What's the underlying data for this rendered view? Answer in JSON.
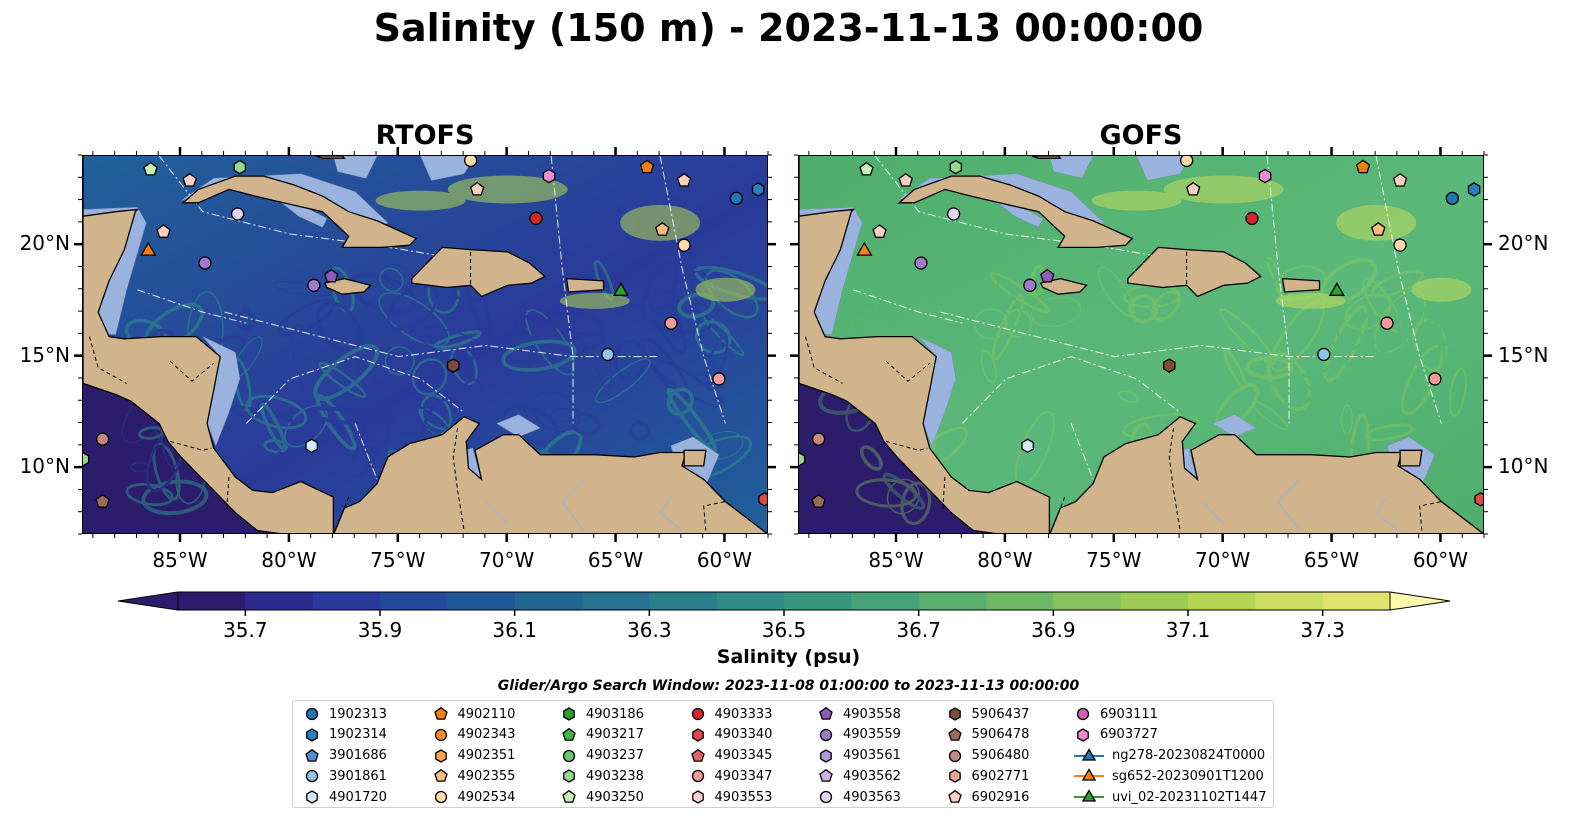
{
  "title": "Salinity (150 m) - 2023-11-13 00:00:00",
  "panels": [
    {
      "name": "RTOFS",
      "palette": {
        "deep": "#2a3a9a",
        "mid": "#21619a",
        "light": "#2f8f8a"
      }
    },
    {
      "name": "GOFS",
      "palette": {
        "deep": "#5bb87a",
        "mid": "#4fae6c",
        "light": "#8fcf5a"
      }
    }
  ],
  "colors": {
    "land": "#d2b48c",
    "shallow": "#9ab3de",
    "coast": "#000000",
    "ocean_outside": "#2b1d6b"
  },
  "map_extent": {
    "lon": [
      -89.5,
      -58.0
    ],
    "lat": [
      7.0,
      24.0
    ]
  },
  "lat_ticks": [
    "20°N",
    "15°N",
    "10°N"
  ],
  "lat_tick_values": [
    20,
    15,
    10
  ],
  "lon_ticks": [
    "85°W",
    "80°W",
    "75°W",
    "70°W",
    "65°W",
    "60°W"
  ],
  "lon_tick_values": [
    -85,
    -80,
    -75,
    -70,
    -65,
    -60
  ],
  "colorbar": {
    "label": "Salinity (psu)",
    "min": 35.6,
    "max": 37.4,
    "ticks": [
      "35.7",
      "35.9",
      "36.1",
      "36.3",
      "36.5",
      "36.7",
      "36.9",
      "37.1",
      "37.3"
    ],
    "tick_values": [
      35.7,
      35.9,
      36.1,
      36.3,
      36.5,
      36.7,
      36.9,
      37.1,
      37.3
    ],
    "colors": [
      "#2b1d6b",
      "#2a2a8c",
      "#2a3a9a",
      "#24499a",
      "#1f5896",
      "#216691",
      "#25728e",
      "#2a7f8b",
      "#2f8b87",
      "#37977f",
      "#46a277",
      "#5aae6e",
      "#6eb866",
      "#86c25d",
      "#9ccb56",
      "#b4d353",
      "#ccdd63",
      "#e2e36f"
    ],
    "extend_low": "#2b1d6b",
    "extend_high": "#fdf8b0"
  },
  "legend": {
    "title": "Glider/Argo Search Window: 2023-11-08 01:00:00 to 2023-11-13 00:00:00",
    "items": [
      {
        "label": "1902313",
        "marker": "circle",
        "color": "#1f77b4"
      },
      {
        "label": "1902314",
        "marker": "hexagon",
        "color": "#2a7fc1"
      },
      {
        "label": "3901686",
        "marker": "pentagon",
        "color": "#4d8fd0"
      },
      {
        "label": "3901861",
        "marker": "circle",
        "color": "#8fc3e8"
      },
      {
        "label": "4901720",
        "marker": "hexagon",
        "color": "#d2e9fa"
      },
      {
        "label": "4902110",
        "marker": "pentagon",
        "color": "#f07f0f"
      },
      {
        "label": "4902343",
        "marker": "circle",
        "color": "#ff8c2a"
      },
      {
        "label": "4902351",
        "marker": "hexagon",
        "color": "#ffa350"
      },
      {
        "label": "4902355",
        "marker": "pentagon",
        "color": "#ffbb82"
      },
      {
        "label": "4902534",
        "marker": "circle",
        "color": "#ffd8ac"
      },
      {
        "label": "4903186",
        "marker": "hexagon",
        "color": "#2ca02c"
      },
      {
        "label": "4903217",
        "marker": "pentagon",
        "color": "#44b344"
      },
      {
        "label": "4903237",
        "marker": "circle",
        "color": "#6cc56c"
      },
      {
        "label": "4903238",
        "marker": "hexagon",
        "color": "#95d88e"
      },
      {
        "label": "4903250",
        "marker": "pentagon",
        "color": "#c3f0b3"
      },
      {
        "label": "4903333",
        "marker": "circle",
        "color": "#d62728"
      },
      {
        "label": "4903340",
        "marker": "hexagon",
        "color": "#e04848"
      },
      {
        "label": "4903345",
        "marker": "pentagon",
        "color": "#e46464"
      },
      {
        "label": "4903347",
        "marker": "circle",
        "color": "#f29a96"
      },
      {
        "label": "4903553",
        "marker": "hexagon",
        "color": "#fbd0cc"
      },
      {
        "label": "4903558",
        "marker": "pentagon",
        "color": "#8e5bb8"
      },
      {
        "label": "4903559",
        "marker": "circle",
        "color": "#a07cc8"
      },
      {
        "label": "4903561",
        "marker": "hexagon",
        "color": "#b598d8"
      },
      {
        "label": "4903562",
        "marker": "pentagon",
        "color": "#ccb5ea"
      },
      {
        "label": "4903563",
        "marker": "circle",
        "color": "#e6d4f8"
      },
      {
        "label": "5906437",
        "marker": "hexagon",
        "color": "#7a4d3c"
      },
      {
        "label": "5906478",
        "marker": "pentagon",
        "color": "#9a6a5a"
      },
      {
        "label": "5906480",
        "marker": "circle",
        "color": "#c08b7e"
      },
      {
        "label": "6902771",
        "marker": "hexagon",
        "color": "#e8a896"
      },
      {
        "label": "6902916",
        "marker": "pentagon",
        "color": "#fbcfc0"
      },
      {
        "label": "6903111",
        "marker": "circle",
        "color": "#d35fb7"
      },
      {
        "label": "6903727",
        "marker": "hexagon",
        "color": "#ee8ad0"
      },
      {
        "label": "ng278-20230824T0000",
        "marker": "triangle-line",
        "color": "#1f77b4"
      },
      {
        "label": "sg652-20230901T1200",
        "marker": "triangle-line",
        "color": "#ff7f0e"
      },
      {
        "label": "uvi_02-20231102T1447",
        "marker": "triangle-line",
        "color": "#2ca02c"
      }
    ]
  },
  "markers": [
    {
      "id": "4903250",
      "lon": -86.4,
      "lat": 23.4
    },
    {
      "id": "4903238",
      "lon": -82.3,
      "lat": 23.5
    },
    {
      "id": "6902916",
      "lon": -84.6,
      "lat": 22.9
    },
    {
      "id": "4903563",
      "lon": -82.4,
      "lat": 21.4
    },
    {
      "id": "6902916",
      "lon": -85.8,
      "lat": 20.6
    },
    {
      "id": "sg652-20230901T1200",
      "lon": -86.5,
      "lat": 19.8
    },
    {
      "id": "4903559",
      "lon": -83.9,
      "lat": 19.2
    },
    {
      "id": "4903558",
      "lon": -78.1,
      "lat": 18.6
    },
    {
      "id": "4903559",
      "lon": -78.9,
      "lat": 18.2
    },
    {
      "id": "4902534",
      "lon": -71.7,
      "lat": 23.8
    },
    {
      "id": "6902916",
      "lon": -71.4,
      "lat": 22.5
    },
    {
      "id": "6903727",
      "lon": -68.1,
      "lat": 23.1
    },
    {
      "id": "4903333",
      "lon": -68.7,
      "lat": 21.2
    },
    {
      "id": "4902110",
      "lon": -63.6,
      "lat": 23.5
    },
    {
      "id": "6902916",
      "lon": -61.9,
      "lat": 22.9
    },
    {
      "id": "4902355",
      "lon": -62.9,
      "lat": 20.7
    },
    {
      "id": "4902534",
      "lon": -61.9,
      "lat": 20.0
    },
    {
      "id": "1902313",
      "lon": -59.5,
      "lat": 22.1
    },
    {
      "id": "1902314",
      "lon": -58.5,
      "lat": 22.5
    },
    {
      "id": "uvi_02-20231102T1447",
      "lon": -64.8,
      "lat": 18.0
    },
    {
      "id": "4903347",
      "lon": -62.5,
      "lat": 16.5
    },
    {
      "id": "3901861",
      "lon": -65.4,
      "lat": 15.1
    },
    {
      "id": "5906437",
      "lon": -72.5,
      "lat": 14.6
    },
    {
      "id": "4903347",
      "lon": -60.3,
      "lat": 14.0
    },
    {
      "id": "4901720",
      "lon": -79.0,
      "lat": 11.0
    },
    {
      "id": "5906480",
      "lon": -88.6,
      "lat": 11.3
    },
    {
      "id": "5906478",
      "lon": -88.6,
      "lat": 8.5
    },
    {
      "id": "4903340",
      "lon": -58.2,
      "lat": 8.6
    },
    {
      "id": "4903238",
      "lon": -89.5,
      "lat": 10.4
    }
  ]
}
